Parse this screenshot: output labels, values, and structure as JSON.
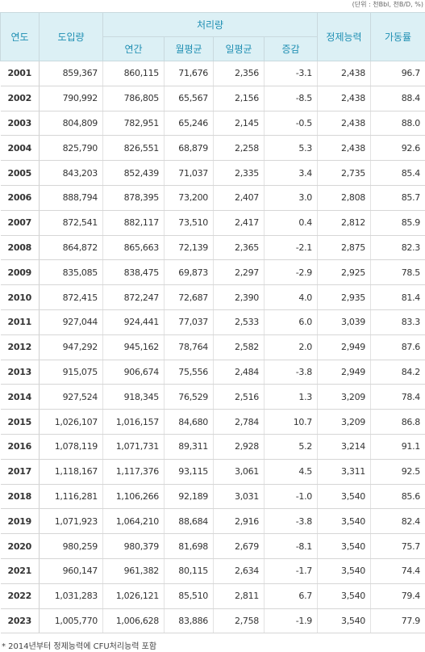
{
  "unit": "(단위 : 천Bbl, 천B/D, %)",
  "table": {
    "header": {
      "year": "연도",
      "import": "도입량",
      "processing": "처리량",
      "annual": "연간",
      "monthly": "월평균",
      "daily": "일평균",
      "change": "증감",
      "capacity": "정제능력",
      "utilization": "가동률"
    },
    "rows": [
      [
        "2001",
        "859,367",
        "860,115",
        "71,676",
        "2,356",
        "-3.1",
        "2,438",
        "96.7"
      ],
      [
        "2002",
        "790,992",
        "786,805",
        "65,567",
        "2,156",
        "-8.5",
        "2,438",
        "88.4"
      ],
      [
        "2003",
        "804,809",
        "782,951",
        "65,246",
        "2,145",
        "-0.5",
        "2,438",
        "88.0"
      ],
      [
        "2004",
        "825,790",
        "826,551",
        "68,879",
        "2,258",
        "5.3",
        "2,438",
        "92.6"
      ],
      [
        "2005",
        "843,203",
        "852,439",
        "71,037",
        "2,335",
        "3.4",
        "2,735",
        "85.4"
      ],
      [
        "2006",
        "888,794",
        "878,395",
        "73,200",
        "2,407",
        "3.0",
        "2,808",
        "85.7"
      ],
      [
        "2007",
        "872,541",
        "882,117",
        "73,510",
        "2,417",
        "0.4",
        "2,812",
        "85.9"
      ],
      [
        "2008",
        "864,872",
        "865,663",
        "72,139",
        "2,365",
        "-2.1",
        "2,875",
        "82.3"
      ],
      [
        "2009",
        "835,085",
        "838,475",
        "69,873",
        "2,297",
        "-2.9",
        "2,925",
        "78.5"
      ],
      [
        "2010",
        "872,415",
        "872,247",
        "72,687",
        "2,390",
        "4.0",
        "2,935",
        "81.4"
      ],
      [
        "2011",
        "927,044",
        "924,441",
        "77,037",
        "2,533",
        "6.0",
        "3,039",
        "83.3"
      ],
      [
        "2012",
        "947,292",
        "945,162",
        "78,764",
        "2,582",
        "2.0",
        "2,949",
        "87.6"
      ],
      [
        "2013",
        "915,075",
        "906,674",
        "75,556",
        "2,484",
        "-3.8",
        "2,949",
        "84.2"
      ],
      [
        "2014",
        "927,524",
        "918,345",
        "76,529",
        "2,516",
        "1.3",
        "3,209",
        "78.4"
      ],
      [
        "2015",
        "1,026,107",
        "1,016,157",
        "84,680",
        "2,784",
        "10.7",
        "3,209",
        "86.8"
      ],
      [
        "2016",
        "1,078,119",
        "1,071,731",
        "89,311",
        "2,928",
        "5.2",
        "3,214",
        "91.1"
      ],
      [
        "2017",
        "1,118,167",
        "1,117,376",
        "93,115",
        "3,061",
        "4.5",
        "3,311",
        "92.5"
      ],
      [
        "2018",
        "1,116,281",
        "1,106,266",
        "92,189",
        "3,031",
        "-1.0",
        "3,540",
        "85.6"
      ],
      [
        "2019",
        "1,071,923",
        "1,064,210",
        "88,684",
        "2,916",
        "-3.8",
        "3,540",
        "82.4"
      ],
      [
        "2020",
        "980,259",
        "980,379",
        "81,698",
        "2,679",
        "-8.1",
        "3,540",
        "75.7"
      ],
      [
        "2021",
        "960,147",
        "961,382",
        "80,115",
        "2,634",
        "-1.7",
        "3,540",
        "74.4"
      ],
      [
        "2022",
        "1,031,283",
        "1,026,121",
        "85,510",
        "2,811",
        "6.7",
        "3,540",
        "79.4"
      ],
      [
        "2023",
        "1,005,770",
        "1,006,628",
        "83,886",
        "2,758",
        "-1.9",
        "3,540",
        "77.9"
      ]
    ]
  },
  "footnote": "* 2014년부터 정제능력에 CFU처리능력 포함"
}
